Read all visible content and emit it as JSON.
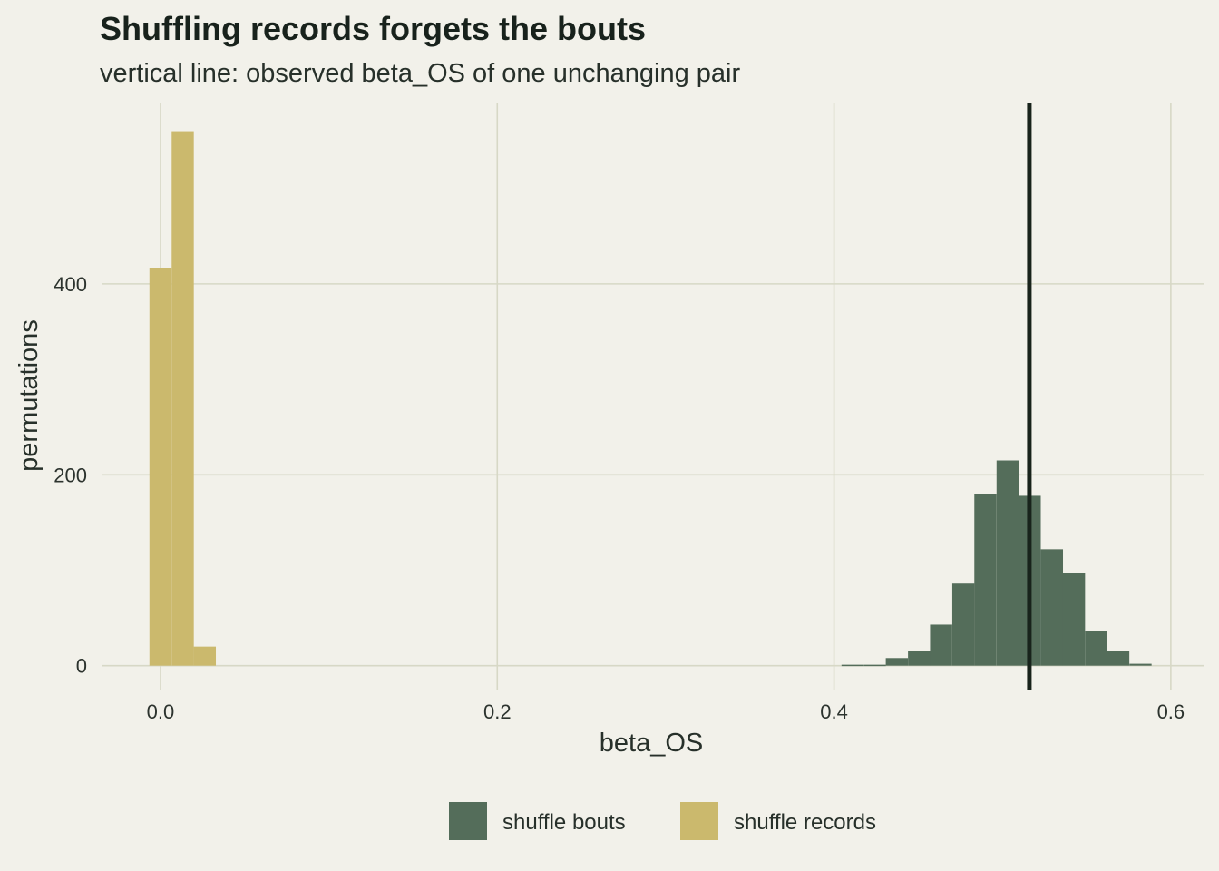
{
  "chart_data": {
    "type": "bar",
    "title": "Shuffling records forgets the bouts",
    "subtitle": "vertical line: observed beta_OS of one unchanging pair",
    "xlabel": "beta_OS",
    "ylabel": "permutations",
    "xlim": [
      -0.035,
      0.62
    ],
    "ylim": [
      -25,
      590
    ],
    "x_ticks": [
      0.0,
      0.2,
      0.4,
      0.6
    ],
    "x_tick_labels": [
      "0.0",
      "0.2",
      "0.4",
      "0.6"
    ],
    "y_ticks": [
      0,
      200,
      400
    ],
    "y_tick_labels": [
      "0",
      "200",
      "400"
    ],
    "bin_width": 0.01315,
    "grid": true,
    "legend_position": "bottom",
    "observed_line": {
      "x": 0.516,
      "color": "#18231b"
    },
    "series": [
      {
        "name": "shuffle bouts",
        "color": "#546d5a",
        "bins": [
          0.411,
          0.4242,
          0.4373,
          0.4505,
          0.4636,
          0.4768,
          0.4899,
          0.5031,
          0.5162,
          0.5294,
          0.5425,
          0.5557,
          0.5688,
          0.582
        ],
        "values": [
          1,
          1,
          8,
          15,
          43,
          86,
          180,
          215,
          178,
          122,
          97,
          36,
          15,
          2
        ]
      },
      {
        "name": "shuffle records",
        "color": "#cbb96d",
        "bins": [
          0.0,
          0.0132,
          0.0263
        ],
        "values": [
          417,
          560,
          20
        ]
      }
    ]
  }
}
